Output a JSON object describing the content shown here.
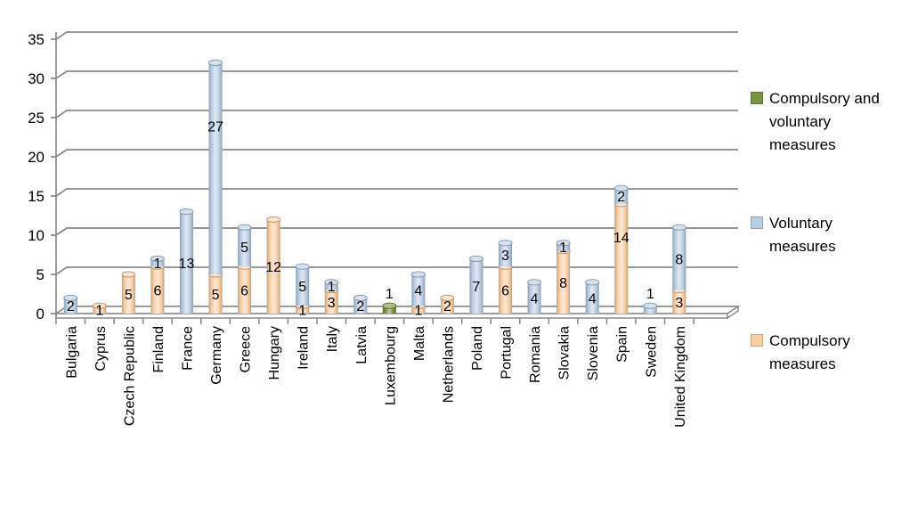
{
  "page": {
    "background": "#ffffff"
  },
  "chart_data": {
    "type": "bar",
    "subtype": "stacked-cylinder-3d",
    "title": "",
    "xlabel": "",
    "ylabel": "",
    "ylim": [
      0,
      35
    ],
    "ytick_step": 5,
    "y_tick_labels": [
      "0",
      "5",
      "10",
      "15",
      "20",
      "25",
      "30",
      "35"
    ],
    "grid": true,
    "legend_position": "right",
    "data_labels": true,
    "gridline_color": "#8a8a8a",
    "label_color": "#000000",
    "categories": [
      "Bulgaria",
      "Cyprus",
      "Czech Republic",
      "Finland",
      "France",
      "Germany",
      "Greece",
      "Hungary",
      "Ireland",
      "Italy",
      "Latvia",
      "Luxembourg",
      "Malta",
      "Netherlands",
      "Poland",
      "Portugal",
      "Romania",
      "Slovakia",
      "Slovenia",
      "Spain",
      "Sweden",
      "United Kingdom"
    ],
    "series": [
      {
        "name": "Compulsory and voluntary measures",
        "color": "#77933C",
        "stack_index": 2,
        "values": [
          0,
          0,
          0,
          0,
          0,
          0,
          0,
          0,
          0,
          0,
          0,
          1,
          0,
          0,
          0,
          0,
          0,
          0,
          0,
          0,
          0,
          0
        ]
      },
      {
        "name": "Voluntary measures",
        "color": "#B9CDE4",
        "stack_index": 1,
        "values": [
          2,
          0,
          0,
          1,
          13,
          27,
          5,
          0,
          5,
          1,
          2,
          0,
          4,
          0,
          7,
          3,
          4,
          1,
          4,
          2,
          1,
          8
        ]
      },
      {
        "name": "Compulsory measures",
        "color": "#FACFA3",
        "stack_index": 0,
        "values": [
          0,
          1,
          5,
          6,
          0,
          5,
          6,
          12,
          1,
          3,
          0,
          0,
          1,
          2,
          0,
          6,
          0,
          8,
          0,
          14,
          0,
          3
        ]
      }
    ],
    "labels_above_bar": [
      "Luxembourg",
      "Sweden"
    ]
  }
}
